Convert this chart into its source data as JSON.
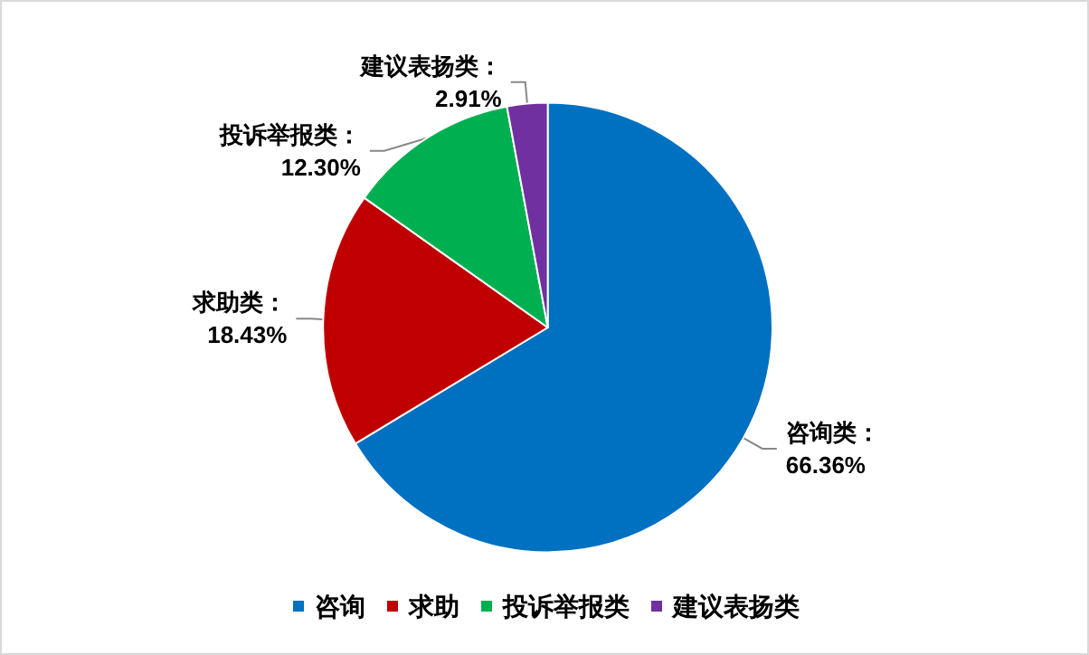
{
  "chart_data": {
    "type": "pie",
    "categories": [
      "咨询",
      "求助",
      "投诉举报类",
      "建议表扬类"
    ],
    "values": [
      66.36,
      18.43,
      12.3,
      2.91
    ],
    "colors": [
      "#0070c0",
      "#c00000",
      "#00b050",
      "#7030a0"
    ],
    "value_labels": [
      "咨询类：\n66.36%",
      "求助类：\n18.43%",
      "投诉举报类：\n12.30%",
      "建议表扬类：\n2.91%"
    ],
    "legend": "bottom"
  }
}
